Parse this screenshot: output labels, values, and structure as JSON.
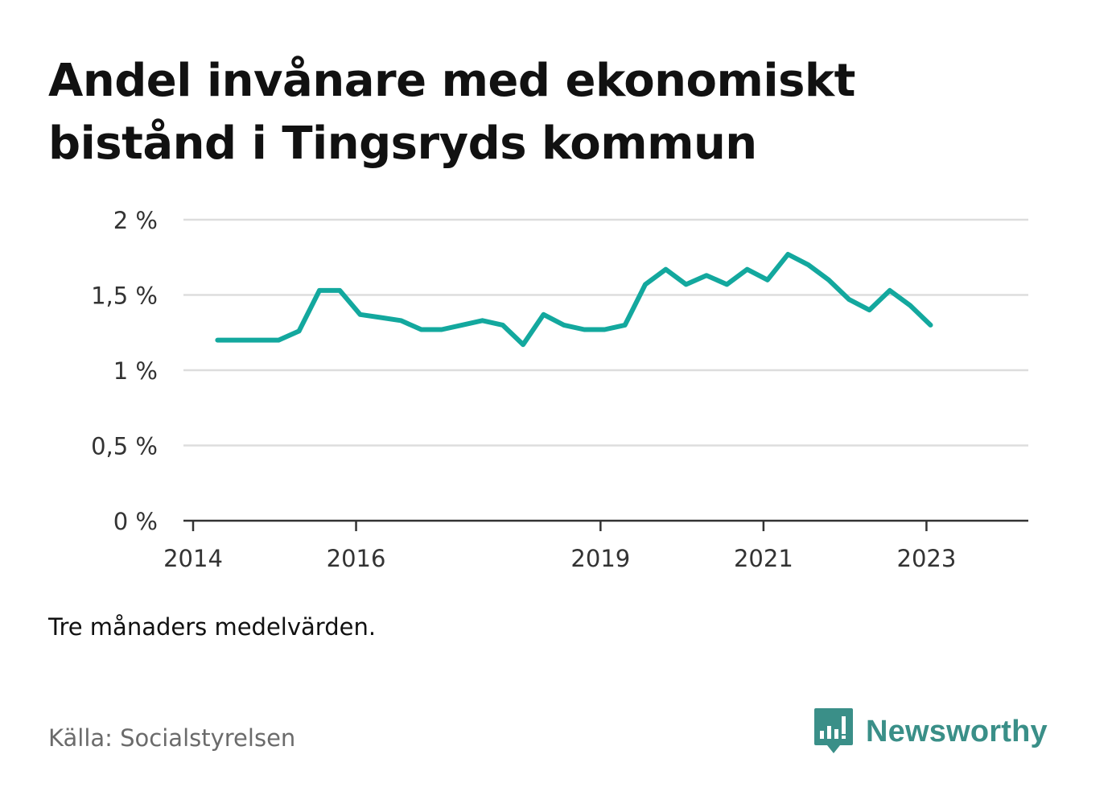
{
  "title": "Andel invånare med ekonomiskt bistånd i Tingsryds kommun",
  "note": "Tre månaders medelvärden.",
  "source": "Källa: Socialstyrelsen",
  "logo": {
    "text": "Newsworthy",
    "icon": "newsworthy-chart-bubble-icon",
    "color": "#3a8f88"
  },
  "chart_data": {
    "type": "line",
    "title": "Andel invånare med ekonomiskt bistånd i Tingsryds kommun",
    "xlabel": "",
    "ylabel": "",
    "line_color": "#13a89e",
    "grid": true,
    "ylim": [
      0,
      2
    ],
    "xlim": [
      2014.0,
      2024.25
    ],
    "y_ticks": [
      {
        "value": 0,
        "label": "0 %"
      },
      {
        "value": 0.5,
        "label": "0,5 %"
      },
      {
        "value": 1,
        "label": "1 %"
      },
      {
        "value": 1.5,
        "label": "1,5 %"
      },
      {
        "value": 2,
        "label": "2 %"
      }
    ],
    "x_ticks": [
      {
        "value": 2014,
        "label": "2014"
      },
      {
        "value": 2016,
        "label": "2016"
      },
      {
        "value": 2019,
        "label": "2019"
      },
      {
        "value": 2021,
        "label": "2021"
      },
      {
        "value": 2023,
        "label": "2023"
      }
    ],
    "series": [
      {
        "x": [
          2014.3,
          2014.55,
          2014.8,
          2015.05,
          2015.3,
          2015.55,
          2015.8,
          2016.05,
          2016.3,
          2016.55,
          2016.8,
          2017.05,
          2017.3,
          2017.55,
          2017.8,
          2018.05,
          2018.3,
          2018.55,
          2018.8,
          2019.05,
          2019.3,
          2019.55,
          2019.8,
          2020.05,
          2020.3,
          2020.55,
          2020.8,
          2021.05,
          2021.3,
          2021.55,
          2021.8,
          2022.05,
          2022.3,
          2022.55,
          2022.8,
          2023.05
        ],
        "values": [
          1.2,
          1.2,
          1.2,
          1.2,
          1.26,
          1.53,
          1.53,
          1.37,
          1.35,
          1.33,
          1.27,
          1.27,
          1.3,
          1.33,
          1.3,
          1.17,
          1.37,
          1.3,
          1.27,
          1.27,
          1.3,
          1.57,
          1.67,
          1.57,
          1.63,
          1.57,
          1.67,
          1.6,
          1.77,
          1.7,
          1.6,
          1.47,
          1.4,
          1.53,
          1.43,
          1.3
        ]
      }
    ]
  }
}
